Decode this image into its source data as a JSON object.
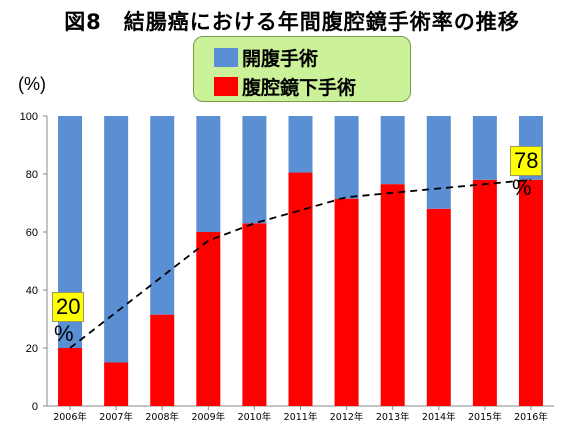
{
  "title": "図8　結腸癌における年間腹腔鏡手術率の推移",
  "y_unit": "(%)",
  "colors": {
    "open": "#5b8fd4",
    "laparoscopic": "#ff0000",
    "legend_bg": "#ccf299",
    "annotation_bg": "#ffff00"
  },
  "annotations": [
    {
      "value": "20",
      "unit": "%"
    },
    {
      "value": "78",
      "unit": "%"
    }
  ],
  "chart_data": {
    "type": "bar",
    "stacked": true,
    "categories": [
      "2006年",
      "2007年",
      "2008年",
      "2009年",
      "2010年",
      "2011年",
      "2012年",
      "2013年",
      "2014年",
      "2015年",
      "2016年"
    ],
    "series": [
      {
        "name": "腹腔鏡下手術",
        "color": "#ff0000",
        "values": [
          20,
          15,
          31.5,
          60,
          63,
          80.5,
          71.5,
          76.5,
          68,
          78,
          78
        ]
      },
      {
        "name": "開腹手術",
        "color": "#5b8fd4",
        "values": [
          80,
          85,
          68.5,
          40,
          37,
          19.5,
          28.5,
          23.5,
          32,
          22,
          22
        ]
      }
    ],
    "trend_line": {
      "style": "dashed",
      "x": [
        "2006年",
        "2009年",
        "2010年",
        "2012年",
        "2016年"
      ],
      "y": [
        20,
        57,
        63,
        72,
        78
      ]
    },
    "ylim": [
      0,
      100
    ],
    "yticks": [
      0,
      20,
      40,
      60,
      80,
      100
    ],
    "grid": false,
    "xlabel": "",
    "ylabel": "(%)",
    "legend": "top-center"
  }
}
